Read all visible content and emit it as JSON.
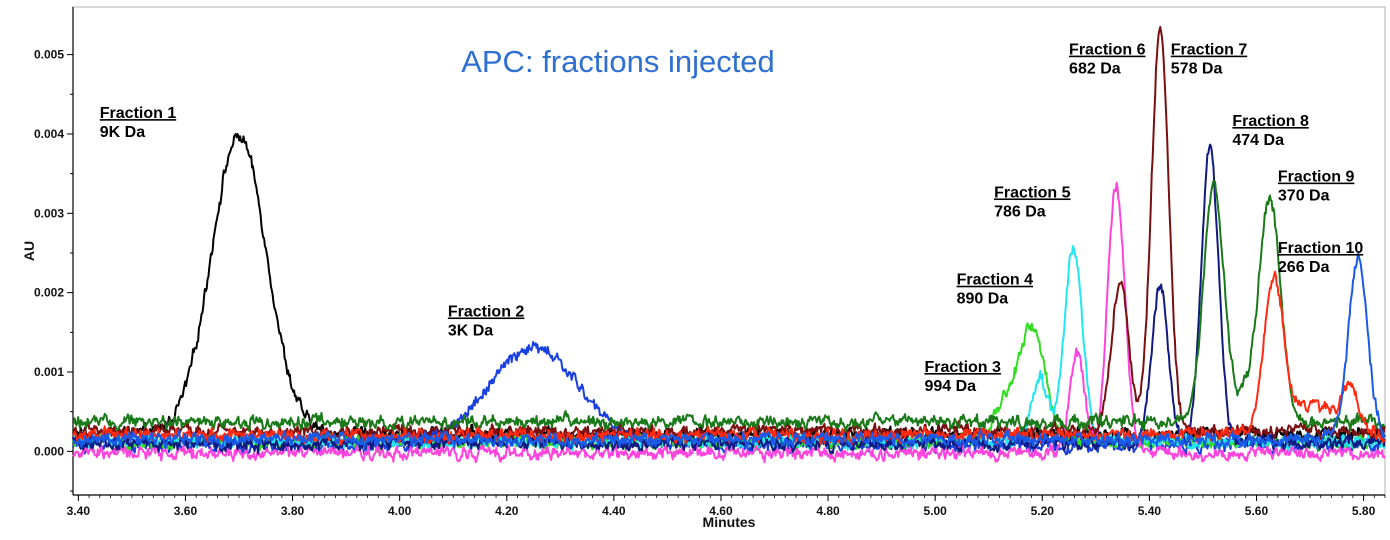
{
  "chart_data": {
    "type": "line",
    "title": "APC: fractions injected",
    "title_color": "#2e6fd0",
    "xlabel": "Minutes",
    "ylabel": "AU",
    "xlim": [
      3.39,
      5.84
    ],
    "ylim": [
      -0.00055,
      0.0056
    ],
    "x_ticks": [
      3.4,
      3.6,
      3.8,
      4.0,
      4.2,
      4.4,
      4.6,
      4.8,
      5.0,
      5.2,
      5.4,
      5.6,
      5.8
    ],
    "x_tick_labels": [
      "3.40",
      "3.60",
      "3.80",
      "4.00",
      "4.20",
      "4.40",
      "4.60",
      "4.80",
      "5.00",
      "5.20",
      "5.40",
      "5.60",
      "5.80"
    ],
    "y_ticks": [
      0,
      0.001,
      0.002,
      0.003,
      0.004,
      0.005
    ],
    "y_tick_labels": [
      "0.000",
      "0.001",
      "0.002",
      "0.003",
      "0.004",
      "0.005"
    ],
    "grid": false,
    "legend": "none",
    "series": [
      {
        "name": "Fraction 1",
        "color": "#000000",
        "baseline": 0.00022,
        "peaks": [
          {
            "x": 3.7,
            "h": 0.00375,
            "w": 0.052
          }
        ]
      },
      {
        "name": "Fraction 2",
        "color": "#1a3fe0",
        "baseline": 8e-05,
        "peaks": [
          {
            "x": 4.25,
            "h": 0.00122,
            "w": 0.085
          }
        ]
      },
      {
        "name": "Fraction 3",
        "color": "#33dd22",
        "baseline": 0.00012,
        "peaks": [
          {
            "x": 5.18,
            "h": 0.00145,
            "w": 0.025
          },
          {
            "x": 5.125,
            "h": 0.0004,
            "w": 0.02
          }
        ]
      },
      {
        "name": "Fraction 4",
        "color": "#22e6f0",
        "baseline": 0.00012,
        "peaks": [
          {
            "x": 5.258,
            "h": 0.00245,
            "w": 0.017
          },
          {
            "x": 5.195,
            "h": 0.00085,
            "w": 0.015
          }
        ]
      },
      {
        "name": "Fraction 5",
        "color": "#ff44dd",
        "baseline": -2e-05,
        "peaks": [
          {
            "x": 5.338,
            "h": 0.0034,
            "w": 0.016
          },
          {
            "x": 5.265,
            "h": 0.00125,
            "w": 0.014
          }
        ]
      },
      {
        "name": "Fraction 6",
        "color": "#7a1010",
        "baseline": 0.00025,
        "peaks": [
          {
            "x": 5.42,
            "h": 0.0051,
            "w": 0.016
          },
          {
            "x": 5.345,
            "h": 0.0019,
            "w": 0.016
          }
        ]
      },
      {
        "name": "Fraction 7",
        "color": "#101a80",
        "baseline": 0.0001,
        "peaks": [
          {
            "x": 5.513,
            "h": 0.0037,
            "w": 0.016
          },
          {
            "x": 5.42,
            "h": 0.002,
            "w": 0.015
          }
        ]
      },
      {
        "name": "Fraction 8",
        "color": "#1a7a1a",
        "baseline": 0.00037,
        "peaks": [
          {
            "x": 5.52,
            "h": 0.003,
            "w": 0.019
          },
          {
            "x": 5.625,
            "h": 0.0028,
            "w": 0.02
          },
          {
            "x": 5.58,
            "h": 0.0003,
            "w": 0.02
          }
        ]
      },
      {
        "name": "Fraction 9",
        "color": "#ff2a10",
        "baseline": 0.0002,
        "peaks": [
          {
            "x": 5.632,
            "h": 0.00185,
            "w": 0.018
          },
          {
            "x": 5.775,
            "h": 0.0006,
            "w": 0.015
          },
          {
            "x": 5.7,
            "h": 0.0004,
            "w": 0.05
          }
        ]
      },
      {
        "name": "Fraction 10",
        "color": "#1a5ae8",
        "baseline": 0.00015,
        "peaks": [
          {
            "x": 5.79,
            "h": 0.0023,
            "w": 0.018
          }
        ]
      }
    ],
    "annotations": [
      {
        "name": "Fraction 1",
        "mass": "9K Da",
        "x": 3.44,
        "y": 0.0042
      },
      {
        "name": "Fraction 2",
        "mass": "3K Da",
        "x": 4.09,
        "y": 0.0017
      },
      {
        "name": "Fraction 3",
        "mass": "994 Da",
        "x": 4.98,
        "y": 0.001
      },
      {
        "name": "Fraction 4",
        "mass": "890 Da",
        "x": 5.04,
        "y": 0.0021
      },
      {
        "name": "Fraction 5",
        "mass": "786 Da",
        "x": 5.11,
        "y": 0.0032
      },
      {
        "name": "Fraction 6",
        "mass": "682 Da",
        "x": 5.25,
        "y": 0.005
      },
      {
        "name": "Fraction 7",
        "mass": "578 Da",
        "x": 5.44,
        "y": 0.005
      },
      {
        "name": "Fraction 8",
        "mass": "474 Da",
        "x": 5.555,
        "y": 0.0041
      },
      {
        "name": "Fraction 9",
        "mass": "370 Da",
        "x": 5.64,
        "y": 0.0034
      },
      {
        "name": "Fraction 10",
        "mass": "266 Da",
        "x": 5.64,
        "y": 0.0025
      }
    ]
  }
}
